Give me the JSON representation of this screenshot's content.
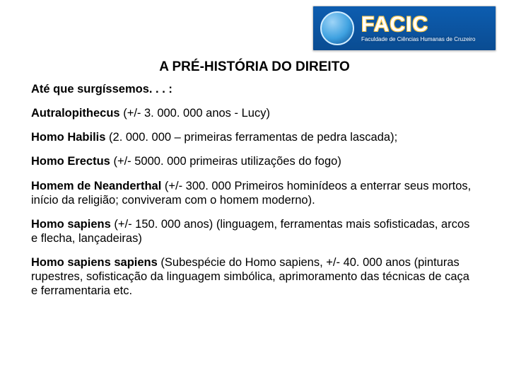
{
  "logo": {
    "brand": "FACIC",
    "tagline": "Faculdade de Ciências Humanas de Cruzeiro"
  },
  "title": "A PRÉ-HISTÓRIA DO DIREITO",
  "paragraphs": [
    {
      "bold": "Até que surgíssemos. . . :",
      "rest": ""
    },
    {
      "bold": "Autralopithecus",
      "rest": " (+/- 3. 000. 000 anos - Lucy)"
    },
    {
      "bold": "Homo Habilis",
      "rest": " (2. 000. 000 – primeiras ferramentas de pedra lascada);"
    },
    {
      "bold": "Homo Erectus",
      "rest": " (+/- 5000. 000 primeiras utilizações do fogo)"
    },
    {
      "bold": "Homem de Neanderthal",
      "rest": " (+/- 300. 000 Primeiros hominídeos a enterrar seus mortos, início da religião; conviveram com o homem moderno)."
    },
    {
      "bold": "Homo sapiens",
      "rest": " (+/- 150. 000 anos)  (linguagem, ferramentas mais sofisticadas, arcos e flecha, lançadeiras)"
    },
    {
      "bold": "Homo sapiens sapiens",
      "rest": " (Subespécie do Homo sapiens, +/- 40. 000 anos (pinturas rupestres, sofisticação da linguagem simbólica, aprimoramento das técnicas de caça e ferramentaria etc."
    }
  ],
  "style": {
    "background": "#ffffff",
    "text_color": "#000000",
    "logo_bg": "#0d5db0",
    "logo_outline": "#f9c23c",
    "title_fontsize": 19,
    "body_fontsize": 16.5
  }
}
